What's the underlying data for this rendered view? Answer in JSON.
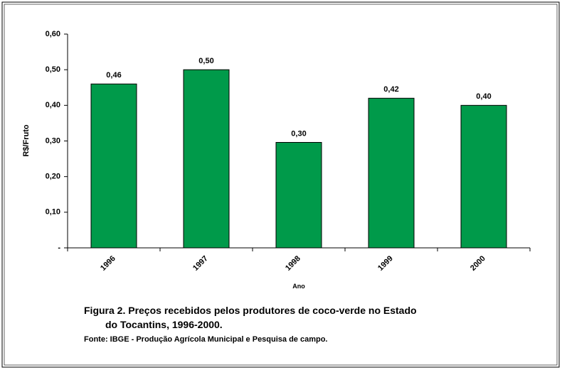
{
  "chart_data": {
    "type": "bar",
    "y_label": "R$/Fruto",
    "x_label": "Ano",
    "caption": [
      "Figura 2. Preços recebidos pelos produtores de coco-verde no Estado",
      "do Tocantins, 1996-2000."
    ],
    "source": "Fonte: IBGE - Produção Agrícola Municipal e Pesquisa de campo.",
    "categories": [
      "1996",
      "1997",
      "1998",
      "1999",
      "2000"
    ],
    "values": [
      0.46,
      0.5,
      0.296,
      0.42,
      0.4
    ],
    "value_labels": [
      "0,46",
      "0,50",
      "0,30",
      "0,42",
      "0,40"
    ],
    "color": "#009a4a",
    "ylim": [
      0,
      0.6
    ],
    "yticks": [
      {
        "value": 0,
        "label": "-"
      },
      {
        "value": 0.1,
        "label": "0,10"
      },
      {
        "value": 0.2,
        "label": "0,20"
      },
      {
        "value": 0.3,
        "label": "0,30"
      },
      {
        "value": 0.4,
        "label": "0,40"
      },
      {
        "value": 0.5,
        "label": "0,50"
      },
      {
        "value": 0.6,
        "label": "0,60"
      }
    ],
    "grid": false
  }
}
